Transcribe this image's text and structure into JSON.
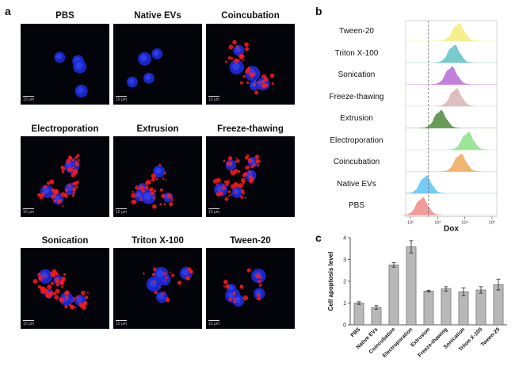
{
  "panel_a": {
    "letter": "a",
    "scale_bar": "10 μm",
    "images": [
      {
        "title": "PBS",
        "red": 0
      },
      {
        "title": "Native EVs",
        "red": 0
      },
      {
        "title": "Coincubation",
        "red": 2
      },
      {
        "title": "Electroporation",
        "red": 3
      },
      {
        "title": "Extrusion",
        "red": 2
      },
      {
        "title": "Freeze-thawing",
        "red": 3
      },
      {
        "title": "Sonication",
        "red": 3
      },
      {
        "title": "Triton X-100",
        "red": 1
      },
      {
        "title": "Tween-20",
        "red": 1
      }
    ]
  },
  "panel_b": {
    "letter": "b",
    "xlabel": "Dox",
    "tick_labels": [
      "10²",
      "10³",
      "10⁴",
      "10⁵"
    ],
    "rows": [
      {
        "label": "Tween-20",
        "color": "#f2ee7a"
      },
      {
        "label": "Triton X-100",
        "color": "#5fc2c4"
      },
      {
        "label": "Sonication",
        "color": "#b86ad8"
      },
      {
        "label": "Freeze-thawing",
        "color": "#d9b5b5"
      },
      {
        "label": "Extrusion",
        "color": "#4f8a3a"
      },
      {
        "label": "Electroporation",
        "color": "#8fe08a"
      },
      {
        "label": "Coincubation",
        "color": "#f0a85a"
      },
      {
        "label": "Native EVs",
        "color": "#5fc3f0"
      },
      {
        "label": "PBS",
        "color": "#f08a8a"
      }
    ]
  },
  "panel_c": {
    "letter": "c"
  },
  "chart_data": {
    "type": "bar",
    "categories": [
      "PBS",
      "Native EVs",
      "Coincubation",
      "Electroporation",
      "Extrusion",
      "Freeze-thawing",
      "Sonication",
      "Triton X-100",
      "Tween-20"
    ],
    "values": [
      1.0,
      0.8,
      2.75,
      3.58,
      1.55,
      1.65,
      1.52,
      1.6,
      1.85
    ],
    "errors": [
      0.06,
      0.08,
      0.1,
      0.28,
      0.04,
      0.1,
      0.18,
      0.15,
      0.25
    ],
    "ylabel": "Cell apoptosis level",
    "ylim": [
      0,
      4
    ],
    "yticks": [
      "0",
      "1",
      "2",
      "3",
      "4"
    ],
    "bar_color": "#b8b8b8"
  }
}
